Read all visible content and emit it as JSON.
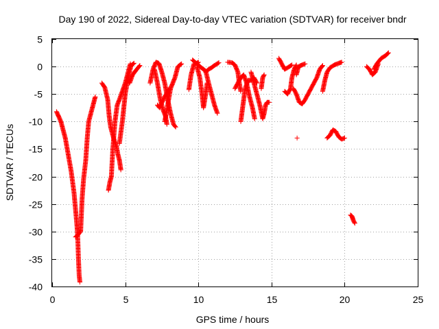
{
  "chart_data": {
    "type": "scatter",
    "title": "Day 190 of 2022, Sidereal Day-to-day VTEC variation (SDTVAR) for receiver bndr",
    "xlabel": "GPS time / hours",
    "ylabel": "SDTVAR / TECUs",
    "xlim": [
      0,
      25
    ],
    "ylim": [
      -40,
      5
    ],
    "xticks": [
      0,
      5,
      10,
      15,
      20,
      25
    ],
    "yticks": [
      5,
      0,
      -5,
      -10,
      -15,
      -20,
      -25,
      -30,
      -35,
      -40
    ],
    "grid": true,
    "marker": "+",
    "color": "#ff0000",
    "segments": [
      [
        [
          0.3,
          -8.2
        ],
        [
          0.6,
          -10
        ],
        [
          0.9,
          -13
        ],
        [
          1.1,
          -16
        ],
        [
          1.3,
          -19
        ],
        [
          1.5,
          -23
        ],
        [
          1.6,
          -26
        ],
        [
          1.7,
          -29
        ],
        [
          1.75,
          -31
        ],
        [
          1.8,
          -35
        ],
        [
          1.85,
          -38
        ],
        [
          1.9,
          -39.2
        ]
      ],
      [
        [
          1.6,
          -31
        ],
        [
          1.8,
          -30.5
        ],
        [
          1.95,
          -30
        ],
        [
          2.05,
          -24
        ],
        [
          2.15,
          -20.5
        ],
        [
          2.3,
          -17
        ],
        [
          2.4,
          -13
        ],
        [
          2.5,
          -10
        ],
        [
          2.7,
          -8
        ],
        [
          2.85,
          -6.5
        ],
        [
          2.95,
          -5.5
        ]
      ],
      [
        [
          3.4,
          -3
        ],
        [
          3.6,
          -3.8
        ],
        [
          3.8,
          -6
        ],
        [
          3.9,
          -9
        ],
        [
          4.0,
          -11
        ],
        [
          4.2,
          -13
        ],
        [
          4.4,
          -14.5
        ],
        [
          4.5,
          -16
        ],
        [
          4.6,
          -17
        ],
        [
          4.7,
          -18.8
        ]
      ],
      [
        [
          3.85,
          -22.5
        ],
        [
          3.95,
          -21
        ],
        [
          4.05,
          -20
        ],
        [
          4.15,
          -15
        ],
        [
          4.3,
          -10
        ],
        [
          4.45,
          -7
        ],
        [
          4.6,
          -6
        ],
        [
          4.8,
          -4.5
        ],
        [
          5.0,
          -3
        ],
        [
          5.2,
          -1
        ],
        [
          5.35,
          0.5
        ]
      ],
      [
        [
          4.6,
          -14
        ],
        [
          4.8,
          -10
        ],
        [
          5.0,
          -5
        ],
        [
          5.2,
          -2
        ],
        [
          5.4,
          0.2
        ],
        [
          5.6,
          0.6
        ]
      ],
      [
        [
          5.3,
          -3
        ],
        [
          5.5,
          -1.5
        ],
        [
          5.7,
          -0.8
        ],
        [
          6.0,
          0.2
        ]
      ],
      [
        [
          6.7,
          -3
        ],
        [
          6.9,
          -0.5
        ],
        [
          7.1,
          0.8
        ],
        [
          7.3,
          0.6
        ],
        [
          7.5,
          -1
        ],
        [
          7.7,
          -3
        ],
        [
          7.9,
          -6
        ],
        [
          8.1,
          -8.5
        ],
        [
          8.3,
          -10.5
        ],
        [
          8.45,
          -11
        ]
      ],
      [
        [
          7.0,
          -0.5
        ],
        [
          7.2,
          -3
        ],
        [
          7.4,
          -6
        ],
        [
          7.6,
          -8
        ],
        [
          7.75,
          -9
        ],
        [
          7.85,
          -10.5
        ]
      ],
      [
        [
          7.2,
          -7
        ],
        [
          7.35,
          -7.5
        ],
        [
          7.6,
          -6
        ],
        [
          7.8,
          -5
        ],
        [
          8.0,
          -4
        ]
      ],
      [
        [
          7.7,
          -10
        ],
        [
          7.9,
          -7
        ],
        [
          8.1,
          -4
        ],
        [
          8.4,
          -2
        ],
        [
          8.6,
          0
        ],
        [
          8.85,
          0.5
        ]
      ],
      [
        [
          9.35,
          -4.2
        ],
        [
          9.5,
          -1.5
        ],
        [
          9.7,
          0.5
        ],
        [
          9.9,
          0.6
        ],
        [
          10.0,
          0.8
        ]
      ],
      [
        [
          9.6,
          1.2
        ],
        [
          9.9,
          0.5
        ],
        [
          10.2,
          -0.2
        ],
        [
          10.5,
          -0.8
        ],
        [
          10.7,
          -3
        ],
        [
          10.9,
          -5
        ],
        [
          11.1,
          -7
        ],
        [
          11.3,
          -8.5
        ]
      ],
      [
        [
          9.9,
          0
        ],
        [
          10.1,
          -2
        ],
        [
          10.25,
          -5
        ],
        [
          10.35,
          -7.5
        ],
        [
          10.5,
          -5
        ],
        [
          10.6,
          -3
        ]
      ],
      [
        [
          10.5,
          -1
        ],
        [
          10.7,
          -0.5
        ],
        [
          10.9,
          -0.2
        ],
        [
          11.1,
          0.2
        ],
        [
          11.4,
          0.7
        ]
      ],
      [
        [
          12.0,
          0.8
        ],
        [
          12.3,
          0.7
        ],
        [
          12.5,
          0.3
        ],
        [
          12.7,
          -1
        ],
        [
          12.8,
          -3
        ],
        [
          12.9,
          -4.5
        ]
      ],
      [
        [
          12.5,
          -4
        ],
        [
          12.7,
          -3
        ],
        [
          12.9,
          -2
        ],
        [
          13.1,
          -1.5
        ],
        [
          13.3,
          -3
        ],
        [
          13.5,
          -5.5
        ],
        [
          13.7,
          -7.5
        ],
        [
          13.85,
          -9.5
        ]
      ],
      [
        [
          12.9,
          -10
        ],
        [
          13.0,
          -8
        ],
        [
          13.1,
          -6
        ],
        [
          13.2,
          -4
        ],
        [
          13.4,
          -2.5
        ],
        [
          13.6,
          -2.5
        ],
        [
          13.8,
          -2
        ],
        [
          14.0,
          -3
        ]
      ],
      [
        [
          13.6,
          -1
        ],
        [
          13.8,
          -3
        ],
        [
          14.0,
          -5
        ],
        [
          14.2,
          -7
        ],
        [
          14.4,
          -9.5
        ],
        [
          14.5,
          -8.5
        ],
        [
          14.6,
          -7
        ],
        [
          14.7,
          -6.5
        ],
        [
          14.85,
          -6.5
        ]
      ],
      [
        [
          14.3,
          -4
        ],
        [
          14.4,
          -2
        ],
        [
          14.5,
          -1.5
        ]
      ],
      [
        [
          15.5,
          1.5
        ],
        [
          15.7,
          0.5
        ],
        [
          15.9,
          -0.5
        ],
        [
          16.1,
          -0.2
        ],
        [
          16.4,
          0.3
        ]
      ],
      [
        [
          15.9,
          -4.5
        ],
        [
          16.1,
          -5
        ],
        [
          16.3,
          -4
        ],
        [
          16.4,
          -2
        ],
        [
          16.55,
          -0.5
        ],
        [
          16.7,
          0.3
        ]
      ],
      [
        [
          16.7,
          -1.5
        ],
        [
          16.85,
          0
        ],
        [
          17.0,
          0.2
        ],
        [
          17.3,
          0.5
        ]
      ],
      [
        [
          16.5,
          -4
        ],
        [
          16.7,
          -5
        ],
        [
          16.9,
          -6.5
        ],
        [
          17.1,
          -6.8
        ],
        [
          17.3,
          -6
        ],
        [
          17.5,
          -5
        ],
        [
          17.7,
          -4
        ],
        [
          17.9,
          -3
        ],
        [
          18.1,
          -2
        ],
        [
          18.3,
          -0.5
        ],
        [
          18.5,
          0.2
        ]
      ],
      [
        [
          18.5,
          -4.5
        ],
        [
          18.65,
          -2.5
        ],
        [
          18.8,
          -1
        ],
        [
          19.0,
          -0.2
        ],
        [
          19.3,
          0.3
        ],
        [
          19.6,
          0.6
        ],
        [
          19.8,
          0.8
        ]
      ],
      [
        [
          18.8,
          -13
        ],
        [
          19.0,
          -12.5
        ],
        [
          19.2,
          -11.5
        ],
        [
          19.4,
          -11.8
        ],
        [
          19.6,
          -12.8
        ],
        [
          19.8,
          -13.2
        ],
        [
          20.0,
          -13
        ]
      ],
      [
        [
          16.75,
          -13
        ]
      ],
      [
        [
          20.4,
          -27
        ],
        [
          20.5,
          -27.2
        ],
        [
          20.6,
          -28
        ],
        [
          20.7,
          -28.5
        ]
      ],
      [
        [
          21.5,
          0
        ],
        [
          21.7,
          -0.5
        ],
        [
          21.9,
          -1.5
        ],
        [
          22.1,
          -1
        ],
        [
          22.3,
          0.5
        ]
      ],
      [
        [
          22.0,
          -0.5
        ],
        [
          22.2,
          0.5
        ],
        [
          22.5,
          1.5
        ],
        [
          22.8,
          2
        ],
        [
          23.0,
          2.5
        ]
      ]
    ]
  }
}
